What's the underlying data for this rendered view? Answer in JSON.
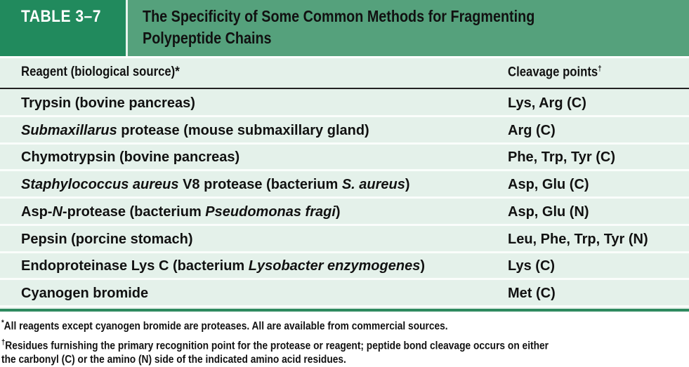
{
  "header": {
    "table_label": "TABLE 3–7",
    "title_line1": "The Specificity of Some Common Methods for Fragmenting",
    "title_line2": "Polypeptide Chains"
  },
  "columns": {
    "reagent": "Reagent  (biological source)*",
    "cleavage": "Cleavage points",
    "cleavage_mark": "†"
  },
  "rows": [
    {
      "reagent": [
        {
          "t": "Trypsin (bovine pancreas)",
          "i": false
        }
      ],
      "cleavage": "Lys, Arg (C)"
    },
    {
      "reagent": [
        {
          "t": "Submaxillarus",
          "i": true
        },
        {
          "t": " protease (mouse submaxillary gland)",
          "i": false
        }
      ],
      "cleavage": "Arg (C)"
    },
    {
      "reagent": [
        {
          "t": "Chymotrypsin (bovine pancreas)",
          "i": false
        }
      ],
      "cleavage": "Phe, Trp, Tyr (C)"
    },
    {
      "reagent": [
        {
          "t": "Staphylococcus aureus",
          "i": true
        },
        {
          "t": " V8 protease (bacterium ",
          "i": false
        },
        {
          "t": "S. aureus",
          "i": true
        },
        {
          "t": ")",
          "i": false
        }
      ],
      "cleavage": "Asp, Glu (C)"
    },
    {
      "reagent": [
        {
          "t": "Asp-",
          "i": false
        },
        {
          "t": "N",
          "i": true
        },
        {
          "t": "-protease (bacterium ",
          "i": false
        },
        {
          "t": "Pseudomonas fragi",
          "i": true
        },
        {
          "t": ")",
          "i": false
        }
      ],
      "cleavage": "Asp, Glu (N)"
    },
    {
      "reagent": [
        {
          "t": "Pepsin (porcine stomach)",
          "i": false
        }
      ],
      "cleavage": "Leu, Phe, Trp, Tyr (N)"
    },
    {
      "reagent": [
        {
          "t": "Endoproteinase Lys C (bacterium ",
          "i": false
        },
        {
          "t": "Lysobacter enzymogenes",
          "i": true
        },
        {
          "t": ")",
          "i": false
        }
      ],
      "cleavage": "Lys (C)"
    },
    {
      "reagent": [
        {
          "t": "Cyanogen bromide",
          "i": false
        }
      ],
      "cleavage": "Met (C)"
    }
  ],
  "footnotes": {
    "f1_mark": "*",
    "f1": "All reagents except cyanogen bromide are proteases. All are available from commercial sources.",
    "f2_mark": "†",
    "f2_line1": "Residues furnishing the primary recognition point for the protease or reagent; peptide bond cleavage occurs on either",
    "f2_line2": "the carbonyl (C) or the amino (N) side of the indicated amino acid residues."
  },
  "colors": {
    "label_bg": "#218a5d",
    "title_bg": "#55a17c",
    "body_bg": "#e4f1ea",
    "rule": "#2e8a5f"
  }
}
